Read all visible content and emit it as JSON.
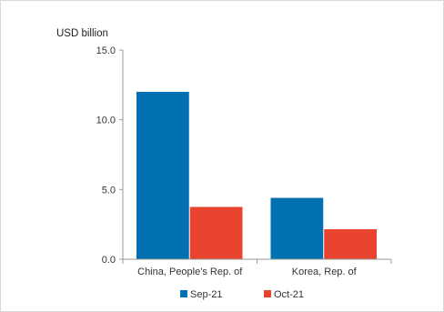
{
  "chart_data": {
    "type": "bar",
    "unit_label": "USD billion",
    "categories": [
      "China, People's Rep. of",
      "Korea, Rep. of"
    ],
    "series": [
      {
        "name": "Sep-21",
        "color": "#0070b0",
        "values": [
          12.0,
          4.4
        ]
      },
      {
        "name": "Oct-21",
        "color": "#e8432e",
        "values": [
          3.75,
          2.15
        ]
      }
    ],
    "y_ticks": [
      "0.0",
      "5.0",
      "10.0",
      "15.0"
    ],
    "ylim": [
      0,
      15
    ],
    "grid": false,
    "legend_position": "bottom"
  }
}
